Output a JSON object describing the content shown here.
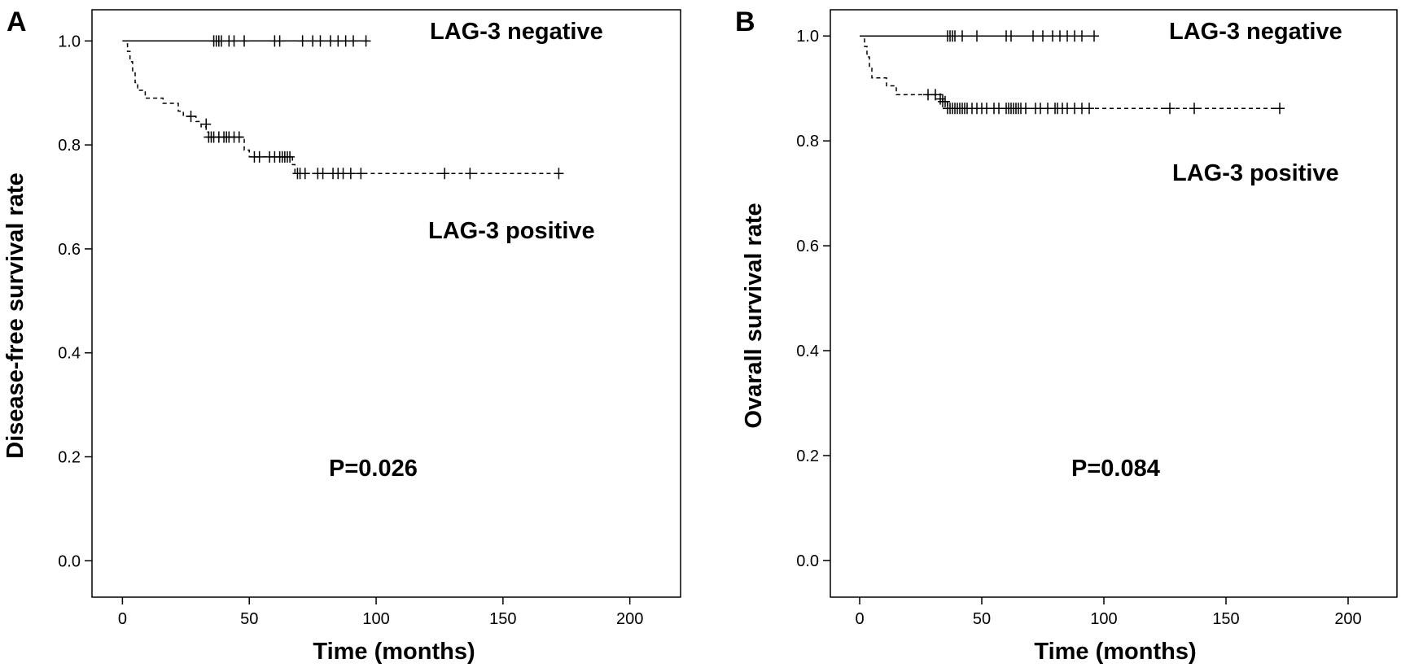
{
  "chart_data": [
    {
      "type": "line",
      "panel_label": "A",
      "xlabel": "Time (months)",
      "ylabel": "Disease-free survival rate",
      "xlim": [
        -12,
        220
      ],
      "ylim": [
        -0.07,
        1.06
      ],
      "x_ticks": [
        0,
        50,
        100,
        150,
        200
      ],
      "y_ticks": [
        0.0,
        0.2,
        0.4,
        0.6,
        0.8,
        1.0
      ],
      "x_tick_labels": [
        "0",
        "50",
        "100",
        "150",
        "200"
      ],
      "y_tick_labels": [
        "0.0",
        "0.2",
        "0.4",
        "0.6",
        "0.8",
        "1.0"
      ],
      "grid": false,
      "pvalue": "P=0.026",
      "series": [
        {
          "label": "LAG-3 negative",
          "line_style": "solid",
          "steps": [
            [
              0,
              1.0
            ],
            [
              97,
              1.0
            ]
          ],
          "censored": [
            [
              36,
              1.0
            ],
            [
              37,
              1.0
            ],
            [
              38,
              1.0
            ],
            [
              39,
              1.0
            ],
            [
              42,
              1.0
            ],
            [
              44,
              1.0
            ],
            [
              48,
              1.0
            ],
            [
              60,
              1.0
            ],
            [
              62,
              1.0
            ],
            [
              71,
              1.0
            ],
            [
              75,
              1.0
            ],
            [
              78,
              1.0
            ],
            [
              82,
              1.0
            ],
            [
              85,
              1.0
            ],
            [
              88,
              1.0
            ],
            [
              91,
              1.0
            ],
            [
              96,
              1.0
            ]
          ]
        },
        {
          "label": "LAG-3 positive",
          "line_style": "dashed",
          "steps": [
            [
              0,
              1.0
            ],
            [
              2,
              1.0
            ],
            [
              2,
              0.98
            ],
            [
              3,
              0.98
            ],
            [
              3,
              0.96
            ],
            [
              4,
              0.96
            ],
            [
              4,
              0.94
            ],
            [
              5,
              0.94
            ],
            [
              5,
              0.92
            ],
            [
              6,
              0.92
            ],
            [
              6,
              0.905
            ],
            [
              9,
              0.905
            ],
            [
              9,
              0.89
            ],
            [
              16,
              0.89
            ],
            [
              16,
              0.88
            ],
            [
              22,
              0.88
            ],
            [
              22,
              0.865
            ],
            [
              24,
              0.865
            ],
            [
              24,
              0.855
            ],
            [
              29,
              0.855
            ],
            [
              29,
              0.845
            ],
            [
              31,
              0.845
            ],
            [
              31,
              0.835
            ],
            [
              33,
              0.835
            ],
            [
              33,
              0.825
            ],
            [
              34,
              0.825
            ],
            [
              34,
              0.815
            ],
            [
              48,
              0.815
            ],
            [
              48,
              0.79
            ],
            [
              50,
              0.79
            ],
            [
              50,
              0.777
            ],
            [
              67,
              0.777
            ],
            [
              67,
              0.762
            ],
            [
              68,
              0.762
            ],
            [
              68,
              0.745
            ],
            [
              172,
              0.745
            ]
          ],
          "censored": [
            [
              27,
              0.855
            ],
            [
              33,
              0.84
            ],
            [
              34,
              0.815
            ],
            [
              35,
              0.815
            ],
            [
              36,
              0.815
            ],
            [
              38,
              0.815
            ],
            [
              40,
              0.815
            ],
            [
              41,
              0.815
            ],
            [
              42,
              0.815
            ],
            [
              44,
              0.815
            ],
            [
              46,
              0.815
            ],
            [
              52,
              0.777
            ],
            [
              54,
              0.777
            ],
            [
              58,
              0.777
            ],
            [
              60,
              0.777
            ],
            [
              62,
              0.777
            ],
            [
              63,
              0.777
            ],
            [
              64,
              0.777
            ],
            [
              65,
              0.777
            ],
            [
              66,
              0.777
            ],
            [
              69,
              0.745
            ],
            [
              70,
              0.745
            ],
            [
              72,
              0.745
            ],
            [
              77,
              0.745
            ],
            [
              79,
              0.745
            ],
            [
              83,
              0.745
            ],
            [
              85,
              0.745
            ],
            [
              87,
              0.745
            ],
            [
              90,
              0.745
            ],
            [
              94,
              0.745
            ],
            [
              127,
              0.745
            ],
            [
              137,
              0.745
            ],
            [
              172,
              0.745
            ]
          ]
        }
      ]
    },
    {
      "type": "line",
      "panel_label": "B",
      "xlabel": "Time (months)",
      "ylabel": "Ovarall survival rate",
      "xlim": [
        -12,
        220
      ],
      "ylim": [
        -0.07,
        1.05
      ],
      "x_ticks": [
        0,
        50,
        100,
        150,
        200
      ],
      "y_ticks": [
        0.0,
        0.2,
        0.4,
        0.6,
        0.8,
        1.0
      ],
      "x_tick_labels": [
        "0",
        "50",
        "100",
        "150",
        "200"
      ],
      "y_tick_labels": [
        "0.0",
        "0.2",
        "0.4",
        "0.6",
        "0.8",
        "1.0"
      ],
      "grid": false,
      "pvalue": "P=0.084",
      "series": [
        {
          "label": "LAG-3 negative",
          "line_style": "solid",
          "steps": [
            [
              0,
              1.0
            ],
            [
              97,
              1.0
            ]
          ],
          "censored": [
            [
              36,
              1.0
            ],
            [
              37,
              1.0
            ],
            [
              38,
              1.0
            ],
            [
              39,
              1.0
            ],
            [
              42,
              1.0
            ],
            [
              48,
              1.0
            ],
            [
              60,
              1.0
            ],
            [
              62,
              1.0
            ],
            [
              71,
              1.0
            ],
            [
              75,
              1.0
            ],
            [
              79,
              1.0
            ],
            [
              82,
              1.0
            ],
            [
              85,
              1.0
            ],
            [
              88,
              1.0
            ],
            [
              91,
              1.0
            ],
            [
              96,
              1.0
            ]
          ]
        },
        {
          "label": "LAG-3 positive",
          "line_style": "dashed",
          "steps": [
            [
              0,
              1.0
            ],
            [
              2,
              1.0
            ],
            [
              2,
              0.98
            ],
            [
              3,
              0.98
            ],
            [
              3,
              0.96
            ],
            [
              4,
              0.96
            ],
            [
              4,
              0.94
            ],
            [
              5,
              0.94
            ],
            [
              5,
              0.92
            ],
            [
              11,
              0.92
            ],
            [
              11,
              0.905
            ],
            [
              15,
              0.905
            ],
            [
              15,
              0.888
            ],
            [
              34,
              0.888
            ],
            [
              34,
              0.875
            ],
            [
              36,
              0.875
            ],
            [
              36,
              0.862
            ],
            [
              172,
              0.862
            ]
          ],
          "censored": [
            [
              28,
              0.888
            ],
            [
              31,
              0.888
            ],
            [
              33,
              0.88
            ],
            [
              34,
              0.875
            ],
            [
              35,
              0.875
            ],
            [
              36,
              0.862
            ],
            [
              37,
              0.862
            ],
            [
              38,
              0.862
            ],
            [
              39,
              0.862
            ],
            [
              40,
              0.862
            ],
            [
              41,
              0.862
            ],
            [
              42,
              0.862
            ],
            [
              43,
              0.862
            ],
            [
              44,
              0.862
            ],
            [
              46,
              0.862
            ],
            [
              48,
              0.862
            ],
            [
              50,
              0.862
            ],
            [
              52,
              0.862
            ],
            [
              55,
              0.862
            ],
            [
              57,
              0.862
            ],
            [
              60,
              0.862
            ],
            [
              61,
              0.862
            ],
            [
              62,
              0.862
            ],
            [
              63,
              0.862
            ],
            [
              64,
              0.862
            ],
            [
              65,
              0.862
            ],
            [
              66,
              0.862
            ],
            [
              68,
              0.862
            ],
            [
              72,
              0.862
            ],
            [
              74,
              0.862
            ],
            [
              77,
              0.862
            ],
            [
              80,
              0.862
            ],
            [
              81,
              0.862
            ],
            [
              83,
              0.862
            ],
            [
              85,
              0.862
            ],
            [
              88,
              0.862
            ],
            [
              91,
              0.862
            ],
            [
              94,
              0.862
            ],
            [
              127,
              0.862
            ],
            [
              137,
              0.862
            ],
            [
              172,
              0.862
            ]
          ]
        }
      ]
    }
  ]
}
